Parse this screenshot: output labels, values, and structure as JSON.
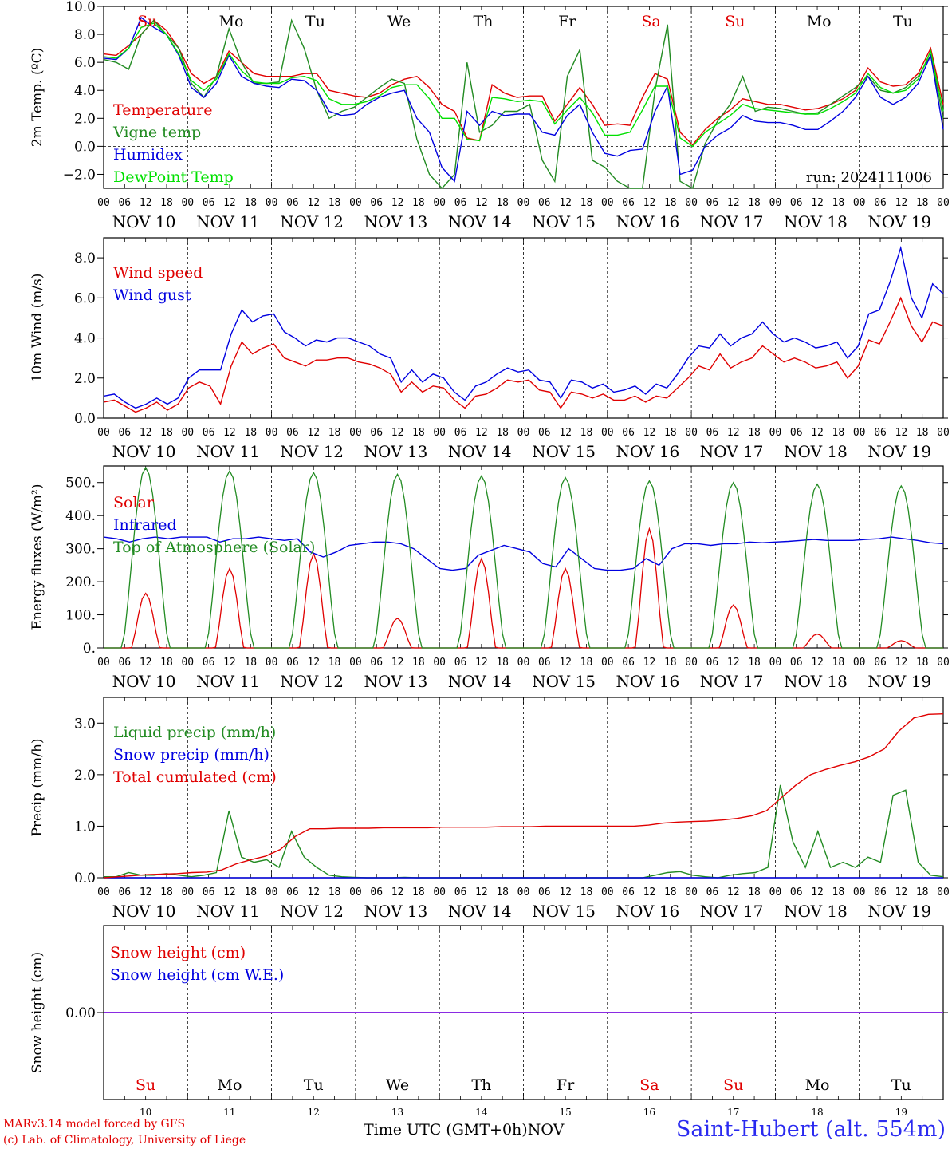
{
  "footer": {
    "model_line": "MARv3.14 model forced by GFS",
    "lab_line": "(c) Lab. of Climatology, University of Liege",
    "xlabel": "Time UTC (GMT+0h)",
    "month": "NOV",
    "station": "Saint-Hubert (alt. 554m)"
  },
  "chart_data": [
    {
      "type": "line",
      "ylabel": "2m Temp. (ºC)",
      "ylim": [
        -3.0,
        10.0
      ],
      "yticks": [
        -2.0,
        0.0,
        2.0,
        4.0,
        6.0,
        8.0,
        10.0
      ],
      "ytick_labels": [
        "−2.0",
        "0.0",
        "2.0",
        "4.0",
        "6.0",
        "8.0",
        "10.0"
      ],
      "reference_line": 0.0,
      "annotation": "run: 2024111006",
      "weekdays": [
        "Su",
        "Mo",
        "Tu",
        "We",
        "Th",
        "Fr",
        "Sa",
        "Su",
        "Mo",
        "Tu"
      ],
      "weekday_colors": [
        "#e00000",
        "#000000",
        "#000000",
        "#000000",
        "#000000",
        "#000000",
        "#e00000",
        "#e00000",
        "#000000",
        "#000000"
      ],
      "series": [
        {
          "name": "Temperature",
          "color": "#e00000",
          "values": [
            6.6,
            6.5,
            7.2,
            8.0,
            9.0,
            8.3,
            7.0,
            5.2,
            4.5,
            5.0,
            6.8,
            6.0,
            5.2,
            5.0,
            5.0,
            5.0,
            5.2,
            5.2,
            4.0,
            3.8,
            3.6,
            3.5,
            3.8,
            4.4,
            4.8,
            5.0,
            4.2,
            3.0,
            2.5,
            0.6,
            0.4,
            4.4,
            3.8,
            3.5,
            3.6,
            3.6,
            1.8,
            3.0,
            4.2,
            3.0,
            1.5,
            1.6,
            1.5,
            3.5,
            5.2,
            4.8,
            1.0,
            0.1,
            1.2,
            2.0,
            2.6,
            3.4,
            3.2,
            3.0,
            3.0,
            2.8,
            2.6,
            2.7,
            3.0,
            3.4,
            4.0,
            5.6,
            4.6,
            4.3,
            4.4,
            5.2,
            7.0,
            3.0
          ]
        },
        {
          "name": "Vigne temp",
          "color": "#228b22",
          "values": [
            6.2,
            6.0,
            5.5,
            8.0,
            9.0,
            8.0,
            7.0,
            4.5,
            3.5,
            5.0,
            8.4,
            6.0,
            4.5,
            4.5,
            4.6,
            9.0,
            7.0,
            4.0,
            2.0,
            2.5,
            2.8,
            3.5,
            4.2,
            4.8,
            4.5,
            0.5,
            -2.0,
            -3.0,
            -2.0,
            6.0,
            1.0,
            1.5,
            2.5,
            2.5,
            3.0,
            -1.0,
            -2.5,
            5.0,
            6.9,
            -1.0,
            -1.5,
            -2.5,
            -3.0,
            -3.0,
            4.0,
            8.7,
            -2.5,
            -3.0,
            0.2,
            1.8,
            3.0,
            5.0,
            2.5,
            2.8,
            2.7,
            2.5,
            2.3,
            2.4,
            3.0,
            3.6,
            4.2,
            5.0,
            4.0,
            3.8,
            4.2,
            5.0,
            6.5,
            2.0
          ]
        },
        {
          "name": "Humidex",
          "color": "#0000e0",
          "values": [
            6.3,
            6.2,
            7.0,
            9.2,
            8.5,
            8.0,
            6.5,
            4.2,
            3.5,
            4.5,
            6.5,
            5.0,
            4.5,
            4.3,
            4.2,
            4.8,
            4.7,
            4.0,
            2.5,
            2.2,
            2.3,
            3.0,
            3.5,
            3.8,
            4.0,
            2.0,
            1.0,
            -1.5,
            -2.5,
            2.5,
            1.5,
            2.5,
            2.2,
            2.3,
            2.3,
            1.0,
            0.8,
            2.2,
            3.0,
            1.0,
            -0.5,
            -0.7,
            -0.3,
            -0.2,
            2.5,
            4.3,
            -2.0,
            -1.7,
            0.0,
            0.8,
            1.3,
            2.2,
            1.8,
            1.7,
            1.7,
            1.5,
            1.2,
            1.2,
            1.8,
            2.5,
            3.5,
            5.0,
            3.5,
            3.0,
            3.5,
            4.5,
            6.5,
            1.2
          ]
        },
        {
          "name": "DewPoint Temp",
          "color": "#00e000",
          "values": [
            6.4,
            6.3,
            7.0,
            8.5,
            8.8,
            8.0,
            6.6,
            4.7,
            4.0,
            4.8,
            6.6,
            5.4,
            4.6,
            4.5,
            4.5,
            4.9,
            5.0,
            4.7,
            3.4,
            3.0,
            3.0,
            3.2,
            3.6,
            4.2,
            4.4,
            4.4,
            3.4,
            2.0,
            2.0,
            0.5,
            0.4,
            3.5,
            3.4,
            3.2,
            3.3,
            3.2,
            1.6,
            2.6,
            3.5,
            2.4,
            0.8,
            0.8,
            1.0,
            2.6,
            4.3,
            4.3,
            0.6,
            0.0,
            1.0,
            1.6,
            2.2,
            3.0,
            2.7,
            2.6,
            2.5,
            2.4,
            2.3,
            2.3,
            2.7,
            3.2,
            3.8,
            5.2,
            4.2,
            3.8,
            4.0,
            4.8,
            6.8,
            2.5
          ]
        }
      ]
    },
    {
      "type": "line",
      "ylabel": "10m Wind (m/s)",
      "ylim": [
        0.0,
        9.0
      ],
      "yticks": [
        0.0,
        2.0,
        4.0,
        6.0,
        8.0
      ],
      "ytick_labels": [
        "0.0",
        "2.0",
        "4.0",
        "6.0",
        "8.0"
      ],
      "reference_line": 5.0,
      "series": [
        {
          "name": "Wind speed",
          "color": "#e00000",
          "values": [
            0.8,
            0.9,
            0.6,
            0.3,
            0.5,
            0.8,
            0.4,
            0.7,
            1.5,
            1.8,
            1.6,
            0.7,
            2.6,
            3.8,
            3.2,
            3.5,
            3.7,
            3.0,
            2.8,
            2.6,
            2.9,
            2.9,
            3.0,
            3.0,
            2.8,
            2.7,
            2.5,
            2.2,
            1.3,
            1.8,
            1.3,
            1.6,
            1.5,
            0.9,
            0.5,
            1.1,
            1.2,
            1.5,
            1.9,
            1.8,
            1.9,
            1.4,
            1.3,
            0.5,
            1.3,
            1.2,
            1.0,
            1.2,
            0.9,
            0.9,
            1.1,
            0.8,
            1.1,
            1.0,
            1.5,
            2.0,
            2.6,
            2.4,
            3.2,
            2.5,
            2.8,
            3.0,
            3.6,
            3.2,
            2.8,
            3.0,
            2.8,
            2.5,
            2.6,
            2.8,
            2.0,
            2.6,
            3.9,
            3.7,
            4.8,
            6.0,
            4.6,
            3.8,
            4.8,
            4.6
          ]
        },
        {
          "name": "Wind gust",
          "color": "#0000e0",
          "values": [
            1.1,
            1.2,
            0.8,
            0.5,
            0.7,
            1.0,
            0.7,
            1.0,
            2.0,
            2.4,
            2.4,
            2.4,
            4.2,
            5.4,
            4.8,
            5.1,
            5.2,
            4.3,
            4.0,
            3.6,
            3.9,
            3.8,
            4.0,
            4.0,
            3.8,
            3.6,
            3.2,
            3.0,
            1.8,
            2.4,
            1.8,
            2.2,
            2.0,
            1.3,
            0.9,
            1.6,
            1.8,
            2.2,
            2.5,
            2.3,
            2.4,
            1.9,
            1.8,
            1.0,
            1.9,
            1.8,
            1.5,
            1.7,
            1.3,
            1.4,
            1.6,
            1.2,
            1.7,
            1.5,
            2.2,
            3.0,
            3.6,
            3.5,
            4.2,
            3.6,
            4.0,
            4.2,
            4.8,
            4.2,
            3.8,
            4.0,
            3.8,
            3.5,
            3.6,
            3.8,
            3.0,
            3.6,
            5.2,
            5.4,
            6.8,
            8.5,
            6.0,
            5.0,
            6.7,
            6.2
          ]
        }
      ]
    },
    {
      "type": "line",
      "ylabel": "Energy fluxes (W/m²)",
      "ylim": [
        0,
        550
      ],
      "yticks": [
        0,
        100,
        200,
        300,
        400,
        500
      ],
      "ytick_labels": [
        "0.",
        "100.",
        "200.",
        "300.",
        "400.",
        "500."
      ],
      "series": [
        {
          "name": "Solar",
          "color": "#e00000",
          "daily_peaks": [
            165,
            240,
            285,
            90,
            270,
            240,
            360,
            130,
            42,
            22
          ]
        },
        {
          "name": "Infrared",
          "color": "#0000e0",
          "values": [
            335,
            330,
            320,
            330,
            335,
            330,
            335,
            335,
            335,
            320,
            330,
            330,
            335,
            330,
            325,
            330,
            290,
            275,
            290,
            310,
            315,
            320,
            320,
            315,
            300,
            270,
            240,
            235,
            240,
            280,
            295,
            310,
            300,
            290,
            255,
            245,
            300,
            270,
            240,
            235,
            235,
            240,
            270,
            250,
            300,
            315,
            315,
            310,
            315,
            315,
            320,
            318,
            320,
            322,
            325,
            328,
            325,
            325,
            325,
            328,
            330,
            335,
            330,
            325,
            318,
            315
          ]
        },
        {
          "name": "Top of Atmosphere (Solar)",
          "color": "#228b22",
          "daily_peaks": [
            545,
            535,
            530,
            525,
            520,
            515,
            505,
            500,
            495,
            490
          ]
        }
      ]
    },
    {
      "type": "line",
      "ylabel": "Precip (mm/h)",
      "ylim": [
        0.0,
        3.5
      ],
      "yticks": [
        0.0,
        1.0,
        2.0,
        3.0
      ],
      "ytick_labels": [
        "0.0",
        "1.0",
        "2.0",
        "3.0"
      ],
      "series": [
        {
          "name": "Liquid precip (mm/h)",
          "color": "#228b22",
          "values": [
            0.02,
            0.02,
            0.1,
            0.05,
            0.05,
            0.08,
            0.05,
            0.02,
            0.05,
            0.1,
            1.3,
            0.4,
            0.3,
            0.35,
            0.2,
            0.9,
            0.4,
            0.2,
            0.05,
            0.02,
            0.01,
            0.0,
            0.0,
            0.0,
            0.01,
            0.0,
            0.0,
            0.0,
            0.0,
            0.0,
            0.0,
            0.0,
            0.0,
            0.0,
            0.0,
            0.0,
            0.0,
            0.0,
            0.0,
            0.0,
            0.0,
            0.0,
            0.0,
            0.0,
            0.05,
            0.1,
            0.12,
            0.05,
            0.02,
            0.0,
            0.05,
            0.08,
            0.1,
            0.2,
            1.8,
            0.7,
            0.2,
            0.9,
            0.2,
            0.3,
            0.2,
            0.4,
            0.3,
            1.6,
            1.7,
            0.3,
            0.05,
            0.02
          ]
        },
        {
          "name": "Snow precip (mm/h)",
          "color": "#0000e0",
          "values": [
            0.0,
            0.0,
            0.0,
            0.0,
            0.0,
            0.0,
            0.0,
            0.0,
            0.0,
            0.0,
            0.0,
            0.0,
            0.0,
            0.0,
            0.0,
            0.0,
            0.0,
            0.0,
            0.0,
            0.0,
            0.0,
            0.0,
            0.0,
            0.0,
            0.0,
            0.0,
            0.0,
            0.0,
            0.0,
            0.0,
            0.0,
            0.0,
            0.0,
            0.0,
            0.0,
            0.0,
            0.0,
            0.0,
            0.0,
            0.0,
            0.0,
            0.0,
            0.0,
            0.0,
            0.0,
            0.0,
            0.0,
            0.0,
            0.0,
            0.0,
            0.0,
            0.0,
            0.0,
            0.0,
            0.0,
            0.0,
            0.0,
            0.0,
            0.0,
            0.0,
            0.0,
            0.0,
            0.0,
            0.0,
            0.0,
            0.0,
            0.0,
            0.0
          ]
        },
        {
          "name": "Total cumulated (cm)",
          "color": "#e00000",
          "values": [
            0.0,
            0.02,
            0.04,
            0.06,
            0.07,
            0.08,
            0.1,
            0.11,
            0.15,
            0.27,
            0.35,
            0.42,
            0.55,
            0.8,
            0.95,
            0.95,
            0.96,
            0.96,
            0.96,
            0.97,
            0.97,
            0.97,
            0.97,
            0.98,
            0.98,
            0.98,
            0.98,
            0.99,
            0.99,
            0.99,
            1.0,
            1.0,
            1.0,
            1.0,
            1.0,
            1.0,
            1.0,
            1.02,
            1.06,
            1.08,
            1.09,
            1.1,
            1.12,
            1.15,
            1.2,
            1.3,
            1.55,
            1.8,
            2.0,
            2.1,
            2.18,
            2.25,
            2.35,
            2.5,
            2.85,
            3.1,
            3.17,
            3.18
          ]
        }
      ]
    },
    {
      "type": "line",
      "ylabel": "Snow height (cm)",
      "yticks": [
        0.0
      ],
      "ytick_labels": [
        "0.00"
      ],
      "series": [
        {
          "name": "Snow height (cm)",
          "color": "#e00000",
          "values": [
            0,
            0
          ]
        },
        {
          "name": "Snow height (cm W.E.)",
          "color": "#0000e0",
          "values": [
            0,
            0
          ]
        }
      ]
    }
  ],
  "day_labels": [
    "NOV 10",
    "NOV 11",
    "NOV 12",
    "NOV 13",
    "NOV 14",
    "NOV 15",
    "NOV 16",
    "NOV 17",
    "NOV 18",
    "NOV 19"
  ],
  "day_numbers": [
    "10",
    "11",
    "12",
    "13",
    "14",
    "15",
    "16",
    "17",
    "18",
    "19"
  ],
  "hour_ticks": [
    "00",
    "06",
    "12",
    "18"
  ],
  "final_hour": "00"
}
